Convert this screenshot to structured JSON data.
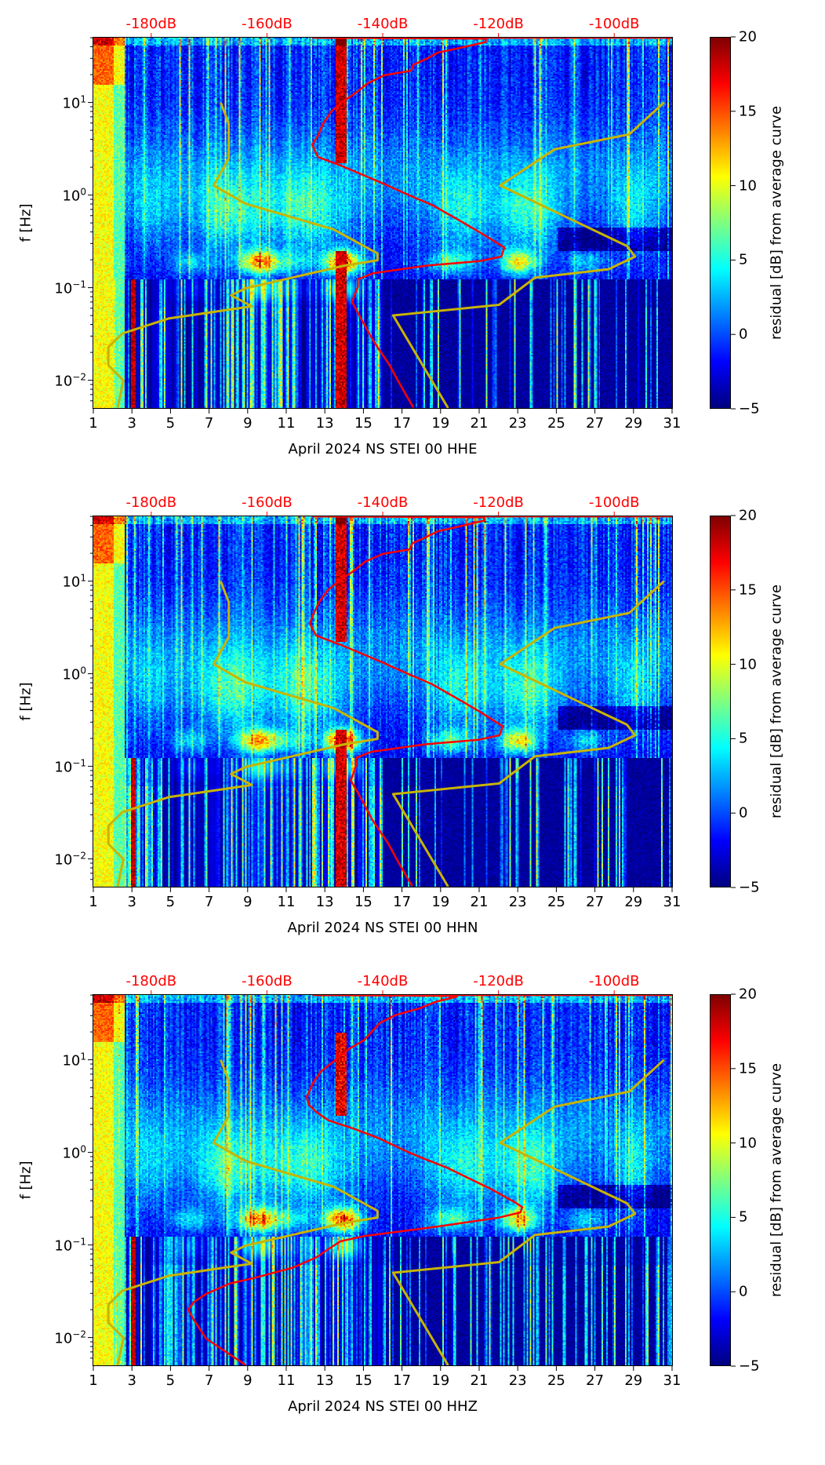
{
  "common": {
    "xlim": [
      1,
      31
    ],
    "x_ticks": [
      "1",
      "3",
      "5",
      "7",
      "9",
      "11",
      "13",
      "15",
      "17",
      "19",
      "21",
      "23",
      "25",
      "27",
      "29",
      "31"
    ],
    "ylabel": "f [Hz]",
    "ylim_log10": [
      -2.3,
      1.7
    ],
    "y_ticks": [
      {
        "base": "10",
        "exp": "−2",
        "log10": -2
      },
      {
        "base": "10",
        "exp": "−1",
        "log10": -1
      },
      {
        "base": "10",
        "exp": "0",
        "log10": 0
      },
      {
        "base": "10",
        "exp": "1",
        "log10": 1
      }
    ],
    "top_axis": {
      "xlim_dB": [
        -190,
        -90
      ],
      "ticks": [
        {
          "label": "-180dB",
          "value": -180
        },
        {
          "label": "-160dB",
          "value": -160
        },
        {
          "label": "-140dB",
          "value": -140
        },
        {
          "label": "-120dB",
          "value": -120
        },
        {
          "label": "-100dB",
          "value": -100
        }
      ],
      "color": "#ff0000"
    },
    "colorbar": {
      "label": "residual [dB] from average curve",
      "range": [
        -5,
        20
      ],
      "ticks": [
        {
          "label": "20",
          "value": 20
        },
        {
          "label": "15",
          "value": 15
        },
        {
          "label": "10",
          "value": 10
        },
        {
          "label": "5",
          "value": 5
        },
        {
          "label": "0",
          "value": 0
        },
        {
          "label": "−5",
          "value": -5
        }
      ],
      "colormap": "jet"
    },
    "low_noise_model": {
      "color": "#c8b400",
      "points_dB_log10f": [
        [
          -168,
          1.0
        ],
        [
          -166.6,
          0.772
        ],
        [
          -166.6,
          0.396
        ],
        [
          -169.2,
          0.103
        ],
        [
          -163.7,
          -0.093
        ],
        [
          -148.5,
          -0.37
        ],
        [
          -140.9,
          -0.631
        ],
        [
          -140.9,
          -0.703
        ],
        [
          -146.6,
          -0.762
        ],
        [
          -163.7,
          -1.007
        ],
        [
          -166.2,
          -1.082
        ],
        [
          -162.6,
          -1.202
        ],
        [
          -177,
          -1.333
        ],
        [
          -185,
          -1.496
        ],
        [
          -187.4,
          -1.643
        ],
        [
          -187.4,
          -1.838
        ],
        [
          -184.8,
          -2.003
        ],
        [
          -185.8,
          -2.297
        ]
      ]
    },
    "high_noise_model": {
      "color": "#c8b400",
      "points_dB_log10f": [
        [
          -91.4,
          1.0
        ],
        [
          -97.4,
          0.657
        ],
        [
          -110.3,
          0.494
        ],
        [
          -119.7,
          0.103
        ],
        [
          -97.8,
          -0.55
        ],
        [
          -96.4,
          -0.664
        ],
        [
          -101.0,
          -0.801
        ],
        [
          -113.7,
          -0.892
        ],
        [
          -119.9,
          -1.186
        ],
        [
          -138.2,
          -1.3
        ],
        [
          -128.7,
          -2.3
        ]
      ]
    }
  },
  "chart_data": [
    {
      "type": "heatmap",
      "xlabel": "April 2024 NS STEI 00 HHE",
      "ylabel": "f [Hz]",
      "psd_curve": {
        "color": "#ff0000",
        "points_dB_log10f": [
          [
            -90,
            1.699
          ],
          [
            -152,
            1.699
          ],
          [
            -122.2,
            1.69
          ],
          [
            -122.2,
            1.653
          ],
          [
            -126.8,
            1.587
          ],
          [
            -130.5,
            1.538
          ],
          [
            -132.4,
            1.473
          ],
          [
            -134.7,
            1.408
          ],
          [
            -135.1,
            1.343
          ],
          [
            -139.7,
            1.294
          ],
          [
            -142.5,
            1.212
          ],
          [
            -144.8,
            1.098
          ],
          [
            -147.1,
            1.0
          ],
          [
            -148.9,
            0.902
          ],
          [
            -150.3,
            0.772
          ],
          [
            -151.2,
            0.641
          ],
          [
            -152.2,
            0.543
          ],
          [
            -151.2,
            0.413
          ],
          [
            -147.1,
            0.315
          ],
          [
            -143.4,
            0.217
          ],
          [
            -139.7,
            0.119
          ],
          [
            -135.1,
            -0.011
          ],
          [
            -131.4,
            -0.109
          ],
          [
            -126.8,
            -0.272
          ],
          [
            -123.2,
            -0.403
          ],
          [
            -119.0,
            -0.566
          ],
          [
            -119.5,
            -0.664
          ],
          [
            -123.2,
            -0.713
          ],
          [
            -132.4,
            -0.762
          ],
          [
            -141.6,
            -0.843
          ],
          [
            -144.3,
            -0.909
          ],
          [
            -144.3,
            -0.99
          ],
          [
            -145.3,
            -1.153
          ],
          [
            -143.9,
            -1.316
          ],
          [
            -141.6,
            -1.577
          ],
          [
            -138.8,
            -1.838
          ],
          [
            -137.4,
            -2.002
          ],
          [
            -134.7,
            -2.295
          ]
        ]
      },
      "variant": 0
    },
    {
      "type": "heatmap",
      "xlabel": "April 2024 NS STEI 00 HHN",
      "ylabel": "f [Hz]",
      "psd_curve": {
        "color": "#ff0000",
        "points_dB_log10f": [
          [
            -90,
            1.699
          ],
          [
            -152,
            1.699
          ],
          [
            -122.5,
            1.69
          ],
          [
            -122.5,
            1.653
          ],
          [
            -127,
            1.587
          ],
          [
            -130.5,
            1.538
          ],
          [
            -132.6,
            1.473
          ],
          [
            -134.9,
            1.408
          ],
          [
            -135.3,
            1.343
          ],
          [
            -140,
            1.294
          ],
          [
            -143,
            1.212
          ],
          [
            -145.3,
            1.098
          ],
          [
            -147.6,
            1.0
          ],
          [
            -149.5,
            0.902
          ],
          [
            -151,
            0.772
          ],
          [
            -152,
            0.641
          ],
          [
            -152.6,
            0.543
          ],
          [
            -151.5,
            0.413
          ],
          [
            -147.4,
            0.315
          ],
          [
            -143.6,
            0.217
          ],
          [
            -139.9,
            0.119
          ],
          [
            -135.3,
            -0.011
          ],
          [
            -131.6,
            -0.109
          ],
          [
            -127,
            -0.272
          ],
          [
            -123.4,
            -0.403
          ],
          [
            -119.3,
            -0.566
          ],
          [
            -119.8,
            -0.664
          ],
          [
            -123.4,
            -0.713
          ],
          [
            -132.6,
            -0.762
          ],
          [
            -142,
            -0.843
          ],
          [
            -144.6,
            -0.909
          ],
          [
            -144.6,
            -0.99
          ],
          [
            -145.5,
            -1.153
          ],
          [
            -144,
            -1.316
          ],
          [
            -141.8,
            -1.577
          ],
          [
            -139,
            -1.838
          ],
          [
            -137.6,
            -2.002
          ],
          [
            -134.9,
            -2.295
          ]
        ]
      },
      "variant": 1
    },
    {
      "type": "heatmap",
      "xlabel": "April 2024 NS STEI 00 HHZ",
      "ylabel": "f [Hz]",
      "psd_curve": {
        "color": "#ff0000",
        "points_dB_log10f": [
          [
            -90,
            1.699
          ],
          [
            -152,
            1.699
          ],
          [
            -127.2,
            1.69
          ],
          [
            -127.2,
            1.682
          ],
          [
            -130.9,
            1.625
          ],
          [
            -133.7,
            1.554
          ],
          [
            -137.8,
            1.483
          ],
          [
            -140.5,
            1.398
          ],
          [
            -143.2,
            1.213
          ],
          [
            -145.9,
            1.114
          ],
          [
            -148.7,
            0.972
          ],
          [
            -150.7,
            0.872
          ],
          [
            -152.1,
            0.744
          ],
          [
            -153.1,
            0.602
          ],
          [
            -152.8,
            0.517
          ],
          [
            -151.4,
            0.432
          ],
          [
            -149.4,
            0.347
          ],
          [
            -144.6,
            0.247
          ],
          [
            -140.5,
            0.148
          ],
          [
            -135.7,
            0.006
          ],
          [
            -133.0,
            -0.065
          ],
          [
            -128.9,
            -0.165
          ],
          [
            -126.1,
            -0.25
          ],
          [
            -121.4,
            -0.392
          ],
          [
            -117.3,
            -0.534
          ],
          [
            -115.9,
            -0.591
          ],
          [
            -116.2,
            -0.648
          ],
          [
            -120.0,
            -0.705
          ],
          [
            -130.9,
            -0.804
          ],
          [
            -143.2,
            -0.903
          ],
          [
            -147.3,
            -0.96
          ],
          [
            -149.4,
            -1.045
          ],
          [
            -151.4,
            -1.131
          ],
          [
            -155.5,
            -1.244
          ],
          [
            -162.3,
            -1.358
          ],
          [
            -166.4,
            -1.415
          ],
          [
            -170.5,
            -1.528
          ],
          [
            -172.6,
            -1.614
          ],
          [
            -173.6,
            -1.699
          ],
          [
            -172.6,
            -1.813
          ],
          [
            -170.5,
            -2.011
          ],
          [
            -167.8,
            -2.125
          ],
          [
            -163.7,
            -2.295
          ]
        ]
      },
      "variant": 2
    }
  ]
}
